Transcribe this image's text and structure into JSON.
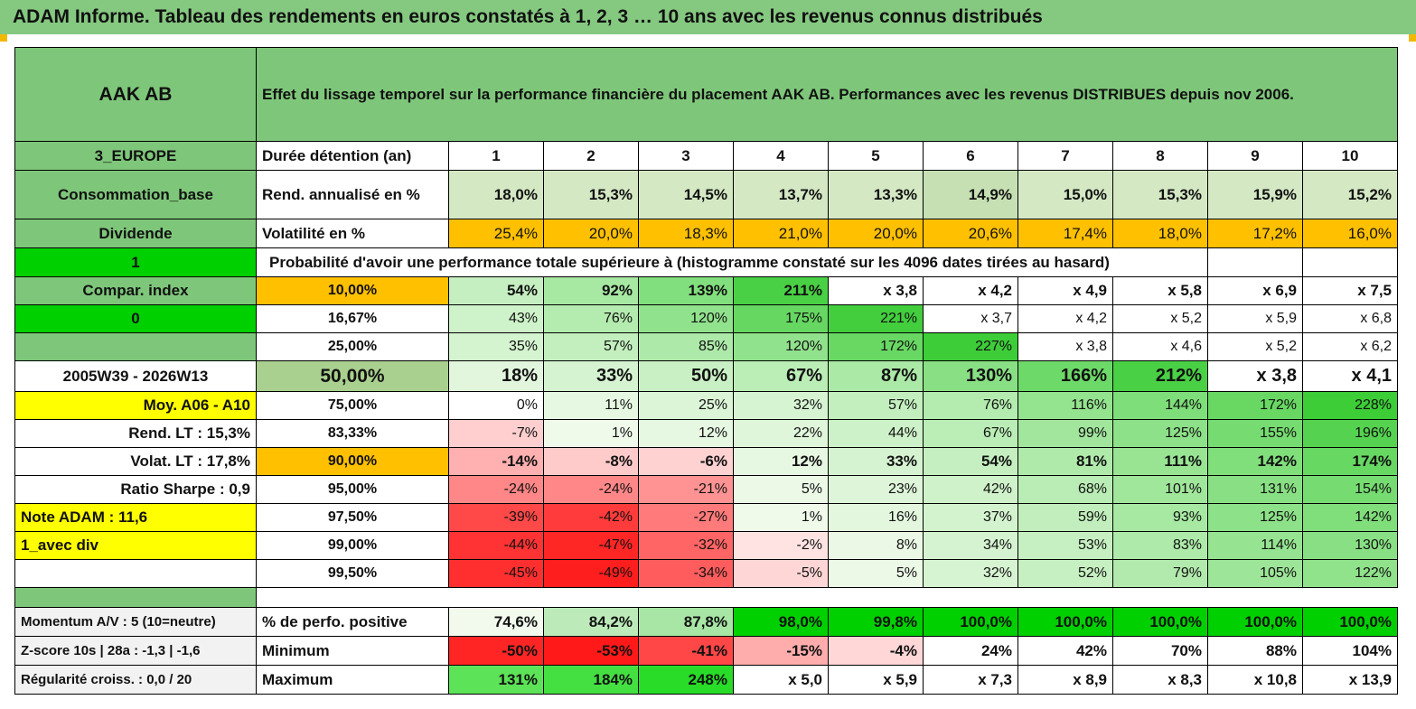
{
  "title": "ADAM Informe. Tableau des rendements en euros constatés à 1, 2, 3 … 10 ans avec les revenus connus distribués",
  "header": {
    "name": "AAK AB",
    "description": "Effet du lissage temporel sur la performance financière du placement AAK AB. Performances avec les revenus DISTRIBUES depuis nov 2006."
  },
  "left_labels": {
    "region": "3_EUROPE",
    "sector": "Consommation_base",
    "type": "Dividende",
    "one": "1",
    "compar_index": "Compar. index",
    "zero": "0",
    "period": "2005W39 - 2026W13",
    "moy": "Moy. A06 - A10",
    "rend_lt": "Rend. LT :   15,3%",
    "volat_lt": "Volat. LT :   17,8%",
    "sharpe": "Ratio Sharpe :    0,9",
    "note": "Note ADAM : 11,6",
    "avec_div": "1_avec div",
    "momentum": "Momentum A/V : 5 (10=neutre)",
    "zscore": "Z-score 10s | 28a : -1,3 | -1,6",
    "regularite": "Régularité croiss. : 0,0 / 20"
  },
  "row_labels": {
    "duree": "Durée détention (an)",
    "rend": "Rend. annualisé en %",
    "vol": "Volatilité en %",
    "proba": "Probabilité d'avoir une performance totale supérieure à (histogramme constaté sur les 4096 dates tirées au hasard)",
    "positive": "% de perfo. positive",
    "minimum": "Minimum",
    "maximum": "Maximum"
  },
  "years": [
    "1",
    "2",
    "3",
    "4",
    "5",
    "6",
    "7",
    "8",
    "9",
    "10"
  ],
  "rendement": [
    "18,0%",
    "15,3%",
    "14,5%",
    "13,7%",
    "13,3%",
    "14,9%",
    "15,0%",
    "15,3%",
    "15,9%",
    "15,2%"
  ],
  "volatilite": [
    "25,4%",
    "20,0%",
    "18,3%",
    "21,0%",
    "20,0%",
    "20,6%",
    "17,4%",
    "18,0%",
    "17,2%",
    "16,0%"
  ],
  "probabilities": [
    {
      "p": "10,00%",
      "v": [
        "54%",
        "92%",
        "139%",
        "211%",
        "x 3,8",
        "x 4,2",
        "x 4,9",
        "x 5,8",
        "x 6,9",
        "x 7,5"
      ]
    },
    {
      "p": "16,67%",
      "v": [
        "43%",
        "76%",
        "120%",
        "175%",
        "221%",
        "x 3,7",
        "x 4,2",
        "x 5,2",
        "x 5,9",
        "x 6,8"
      ]
    },
    {
      "p": "25,00%",
      "v": [
        "35%",
        "57%",
        "85%",
        "120%",
        "172%",
        "227%",
        "x 3,8",
        "x 4,6",
        "x 5,2",
        "x 6,2"
      ]
    },
    {
      "p": "50,00%",
      "v": [
        "18%",
        "33%",
        "50%",
        "67%",
        "87%",
        "130%",
        "166%",
        "212%",
        "x 3,8",
        "x 4,1"
      ]
    },
    {
      "p": "75,00%",
      "v": [
        "0%",
        "11%",
        "25%",
        "32%",
        "57%",
        "76%",
        "116%",
        "144%",
        "172%",
        "228%"
      ]
    },
    {
      "p": "83,33%",
      "v": [
        "-7%",
        "1%",
        "12%",
        "22%",
        "44%",
        "67%",
        "99%",
        "125%",
        "155%",
        "196%"
      ]
    },
    {
      "p": "90,00%",
      "v": [
        "-14%",
        "-8%",
        "-6%",
        "12%",
        "33%",
        "54%",
        "81%",
        "111%",
        "142%",
        "174%"
      ]
    },
    {
      "p": "95,00%",
      "v": [
        "-24%",
        "-24%",
        "-21%",
        "5%",
        "23%",
        "42%",
        "68%",
        "101%",
        "131%",
        "154%"
      ]
    },
    {
      "p": "97,50%",
      "v": [
        "-39%",
        "-42%",
        "-27%",
        "1%",
        "16%",
        "37%",
        "59%",
        "93%",
        "125%",
        "142%"
      ]
    },
    {
      "p": "99,00%",
      "v": [
        "-44%",
        "-47%",
        "-32%",
        "-2%",
        "8%",
        "34%",
        "53%",
        "83%",
        "114%",
        "130%"
      ]
    },
    {
      "p": "99,50%",
      "v": [
        "-45%",
        "-49%",
        "-34%",
        "-5%",
        "5%",
        "32%",
        "52%",
        "79%",
        "105%",
        "122%"
      ]
    }
  ],
  "positive": [
    "74,6%",
    "84,2%",
    "87,8%",
    "98,0%",
    "99,8%",
    "100,0%",
    "100,0%",
    "100,0%",
    "100,0%",
    "100,0%"
  ],
  "minimum": [
    "-50%",
    "-53%",
    "-41%",
    "-15%",
    "-4%",
    "24%",
    "42%",
    "70%",
    "88%",
    "104%"
  ],
  "maximum": [
    "131%",
    "184%",
    "248%",
    "x 5,0",
    "x 5,9",
    "x 7,3",
    "x 8,9",
    "x 8,3",
    "x 10,8",
    "x 13,9"
  ],
  "colors": {
    "header_green": "#7ec77a",
    "bright_green": "#00d000",
    "yellow": "#ffff00",
    "orange": "#ffc000",
    "light_green": "#c6e0b4",
    "positive_scale_end": "#3fc03f",
    "negative_scale_end": "#ff1a1a"
  }
}
